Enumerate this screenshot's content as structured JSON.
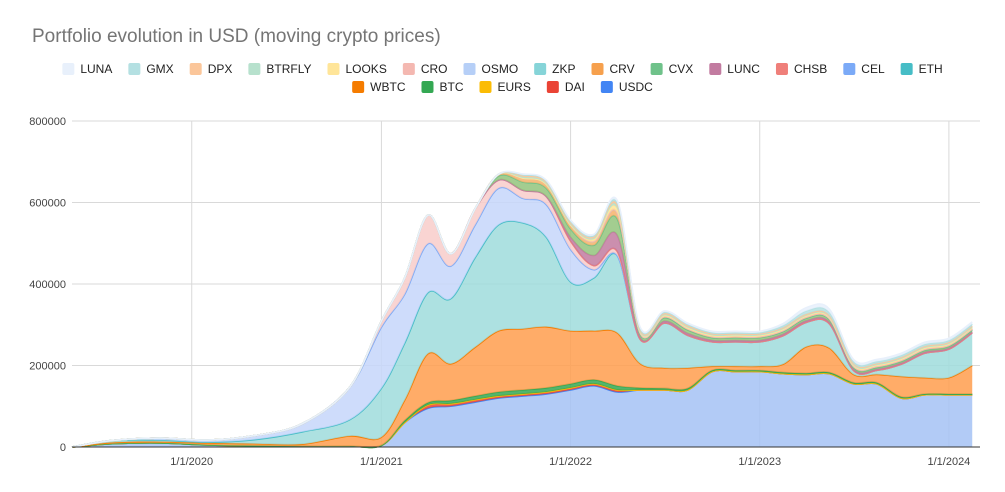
{
  "chart_data": {
    "type": "area",
    "stacked": true,
    "title": "Portfolio evolution in USD (moving crypto prices)",
    "xlabel": "",
    "ylabel": "",
    "x": [
      "2019-05-15",
      "2019-08-01",
      "2019-11-01",
      "2020-02-01",
      "2020-05-01",
      "2020-08-01",
      "2020-11-01",
      "2021-01-01",
      "2021-02-15",
      "2021-04-01",
      "2021-05-15",
      "2021-07-01",
      "2021-08-15",
      "2021-10-01",
      "2021-11-15",
      "2022-01-01",
      "2022-02-15",
      "2022-04-01",
      "2022-05-15",
      "2022-07-01",
      "2022-08-15",
      "2022-10-01",
      "2022-11-15",
      "2023-01-01",
      "2023-02-15",
      "2023-04-01",
      "2023-05-15",
      "2023-07-01",
      "2023-08-15",
      "2023-10-01",
      "2023-11-15",
      "2024-01-01",
      "2024-02-15"
    ],
    "xticks": [
      "1/1/2020",
      "1/1/2021",
      "1/1/2022",
      "1/1/2023",
      "1/1/2024"
    ],
    "xtick_dates": [
      "2020-01-01",
      "2021-01-01",
      "2022-01-01",
      "2023-01-01",
      "2024-01-01"
    ],
    "yticks": [
      "0",
      "200000",
      "400000",
      "600000",
      "800000"
    ],
    "ylim": [
      0,
      800000
    ],
    "legend_position": "top",
    "series": [
      {
        "name": "USDC",
        "color": "#a4c2f4",
        "values": [
          0,
          8000,
          10000,
          5000,
          3000,
          2000,
          2000,
          4000,
          60000,
          95000,
          100000,
          110000,
          120000,
          125000,
          130000,
          140000,
          150000,
          135000,
          140000,
          140000,
          140000,
          185000,
          185000,
          185000,
          180000,
          178000,
          180000,
          155000,
          155000,
          120000,
          128000,
          128000,
          128000
        ]
      },
      {
        "name": "DAI",
        "color": "#ea4335",
        "values": [
          0,
          0,
          0,
          0,
          0,
          0,
          0,
          0,
          0,
          8000,
          6000,
          6000,
          5000,
          5000,
          5000,
          5000,
          5000,
          5000,
          0,
          0,
          0,
          0,
          0,
          0,
          0,
          0,
          0,
          0,
          0,
          0,
          0,
          0,
          0
        ]
      },
      {
        "name": "EURS",
        "color": "#fbbc04",
        "values": [
          0,
          0,
          0,
          0,
          0,
          0,
          0,
          0,
          0,
          0,
          0,
          0,
          0,
          0,
          0,
          0,
          0,
          0,
          0,
          0,
          0,
          0,
          0,
          0,
          0,
          0,
          0,
          0,
          0,
          0,
          0,
          0,
          0
        ]
      },
      {
        "name": "BTC",
        "color": "#34a853",
        "values": [
          0,
          0,
          0,
          0,
          0,
          0,
          0,
          0,
          5000,
          6000,
          8000,
          9000,
          10000,
          10000,
          10000,
          10000,
          10000,
          10000,
          5000,
          4000,
          4000,
          3000,
          3000,
          3000,
          3000,
          3000,
          3000,
          3000,
          3000,
          3000,
          2000,
          2000,
          2000
        ]
      },
      {
        "name": "WBTC",
        "color": "#ff9e4d",
        "values": [
          0,
          3000,
          3000,
          5000,
          5000,
          5000,
          25000,
          20000,
          50000,
          120000,
          90000,
          120000,
          150000,
          150000,
          150000,
          130000,
          120000,
          130000,
          60000,
          50000,
          50000,
          10000,
          10000,
          10000,
          20000,
          65000,
          60000,
          20000,
          20000,
          50000,
          40000,
          40000,
          70000
        ]
      },
      {
        "name": "ETH",
        "color": "#9fdcdc",
        "values": [
          0,
          5000,
          4000,
          2000,
          10000,
          30000,
          40000,
          120000,
          140000,
          150000,
          160000,
          220000,
          260000,
          260000,
          220000,
          120000,
          130000,
          190000,
          60000,
          110000,
          80000,
          60000,
          60000,
          60000,
          70000,
          60000,
          60000,
          10000,
          10000,
          30000,
          60000,
          70000,
          80000
        ]
      },
      {
        "name": "CEL",
        "color": "#c5d6fa",
        "values": [
          0,
          0,
          5000,
          5000,
          10000,
          20000,
          80000,
          150000,
          120000,
          120000,
          80000,
          80000,
          90000,
          60000,
          80000,
          80000,
          20000,
          0,
          0,
          0,
          0,
          0,
          0,
          0,
          0,
          0,
          0,
          0,
          0,
          0,
          0,
          0,
          0
        ]
      },
      {
        "name": "CHSB",
        "color": "#f8cdca",
        "values": [
          0,
          0,
          0,
          0,
          0,
          0,
          0,
          15000,
          40000,
          70000,
          30000,
          40000,
          20000,
          20000,
          20000,
          20000,
          10000,
          10000,
          0,
          0,
          0,
          0,
          0,
          0,
          0,
          0,
          0,
          0,
          0,
          0,
          0,
          0,
          0
        ]
      },
      {
        "name": "LUNC",
        "color": "#c27ba0",
        "values": [
          0,
          0,
          0,
          0,
          0,
          0,
          0,
          0,
          0,
          0,
          0,
          0,
          0,
          0,
          0,
          10000,
          25000,
          40000,
          5000,
          5000,
          5000,
          4000,
          4000,
          4000,
          4000,
          4000,
          4000,
          3000,
          3000,
          3000,
          3000,
          3000,
          3000
        ]
      },
      {
        "name": "CVX",
        "color": "#93c47d",
        "values": [
          0,
          0,
          0,
          0,
          0,
          0,
          0,
          0,
          0,
          0,
          0,
          0,
          10000,
          20000,
          20000,
          20000,
          25000,
          40000,
          8000,
          8000,
          8000,
          6000,
          6000,
          6000,
          6000,
          6000,
          6000,
          4000,
          4000,
          4000,
          4000,
          4000,
          4000
        ]
      },
      {
        "name": "CRV",
        "color": "#f6b26b",
        "values": [
          0,
          0,
          0,
          0,
          0,
          0,
          0,
          0,
          0,
          0,
          0,
          0,
          4000,
          10000,
          10000,
          10000,
          10000,
          15000,
          3000,
          3000,
          3000,
          3000,
          3000,
          3000,
          3000,
          3000,
          3000,
          3000,
          3000,
          3000,
          3000,
          3000,
          3000
        ]
      },
      {
        "name": "ZKP",
        "color": "#e06666",
        "values": [
          0,
          0,
          0,
          0,
          0,
          0,
          0,
          0,
          0,
          0,
          0,
          0,
          0,
          0,
          0,
          0,
          0,
          0,
          0,
          0,
          0,
          0,
          0,
          0,
          0,
          0,
          0,
          0,
          0,
          0,
          0,
          0,
          0
        ]
      },
      {
        "name": "OSMO",
        "color": "#b6d7a8",
        "values": [
          0,
          0,
          0,
          0,
          0,
          0,
          0,
          0,
          0,
          0,
          0,
          0,
          0,
          0,
          0,
          0,
          0,
          0,
          0,
          0,
          0,
          0,
          0,
          0,
          0,
          0,
          0,
          0,
          0,
          0,
          0,
          0,
          0
        ]
      },
      {
        "name": "CRO",
        "color": "#f4b8b1",
        "values": [
          0,
          0,
          0,
          0,
          0,
          0,
          0,
          0,
          0,
          0,
          0,
          0,
          0,
          0,
          0,
          0,
          0,
          0,
          0,
          0,
          0,
          0,
          0,
          0,
          0,
          0,
          0,
          0,
          0,
          0,
          0,
          0,
          0
        ]
      },
      {
        "name": "LOOKS",
        "color": "#ffe599",
        "values": [
          0,
          0,
          0,
          0,
          0,
          0,
          0,
          0,
          0,
          0,
          0,
          0,
          0,
          0,
          0,
          0,
          5000,
          10000,
          3000,
          3000,
          3000,
          3000,
          3000,
          3000,
          3000,
          3000,
          3000,
          3000,
          3000,
          3000,
          3000,
          3000,
          3000
        ]
      },
      {
        "name": "BTRFLY",
        "color": "#b7e1cd",
        "values": [
          0,
          0,
          0,
          0,
          0,
          0,
          0,
          0,
          0,
          0,
          0,
          0,
          0,
          3000,
          3000,
          3000,
          3000,
          5000,
          2000,
          2000,
          2000,
          2000,
          2000,
          2000,
          2000,
          2000,
          2000,
          2000,
          2000,
          2000,
          2000,
          2000,
          2000
        ]
      },
      {
        "name": "DPX",
        "color": "#fbc69a",
        "values": [
          0,
          0,
          0,
          0,
          0,
          0,
          0,
          0,
          0,
          0,
          0,
          0,
          0,
          3000,
          3000,
          3000,
          3000,
          5000,
          3000,
          3000,
          3000,
          2000,
          2000,
          2000,
          2000,
          2000,
          2000,
          2000,
          2000,
          2000,
          2000,
          2000,
          2000
        ]
      },
      {
        "name": "GMX",
        "color": "#b4e0e2",
        "values": [
          0,
          0,
          0,
          0,
          0,
          0,
          0,
          0,
          0,
          0,
          0,
          0,
          0,
          2000,
          2000,
          3000,
          3000,
          5000,
          3000,
          3000,
          3000,
          3000,
          3000,
          3000,
          5000,
          8000,
          8000,
          5000,
          5000,
          5000,
          5000,
          5000,
          5000
        ]
      },
      {
        "name": "LUNA",
        "color": "#e8f0fb",
        "values": [
          0,
          0,
          0,
          0,
          0,
          0,
          0,
          0,
          0,
          0,
          0,
          0,
          0,
          2000,
          2000,
          3000,
          3000,
          5000,
          3000,
          3000,
          3000,
          3000,
          3000,
          3000,
          5000,
          8000,
          8000,
          5000,
          5000,
          5000,
          5000,
          5000,
          5000
        ]
      }
    ],
    "legend": [
      {
        "name": "LUNA",
        "color": "#e8f0fb"
      },
      {
        "name": "GMX",
        "color": "#b4e0e2"
      },
      {
        "name": "DPX",
        "color": "#fbc69a"
      },
      {
        "name": "BTRFLY",
        "color": "#b7e1cd"
      },
      {
        "name": "LOOKS",
        "color": "#ffe599"
      },
      {
        "name": "CRO",
        "color": "#f4b8b1"
      },
      {
        "name": "OSMO",
        "color": "#b6cff7"
      },
      {
        "name": "ZKP",
        "color": "#86d4d8"
      },
      {
        "name": "CRV",
        "color": "#f6a04d"
      },
      {
        "name": "CVX",
        "color": "#6fc28a"
      },
      {
        "name": "LUNC",
        "color": "#c27ba0"
      },
      {
        "name": "CHSB",
        "color": "#ef7f7a"
      },
      {
        "name": "CEL",
        "color": "#7baaf7"
      },
      {
        "name": "ETH",
        "color": "#46bdc6"
      },
      {
        "name": "WBTC",
        "color": "#f57c00"
      },
      {
        "name": "BTC",
        "color": "#34a853"
      },
      {
        "name": "EURS",
        "color": "#fbbc04"
      },
      {
        "name": "DAI",
        "color": "#ea4335"
      },
      {
        "name": "USDC",
        "color": "#4285f4"
      }
    ],
    "grid": true
  }
}
